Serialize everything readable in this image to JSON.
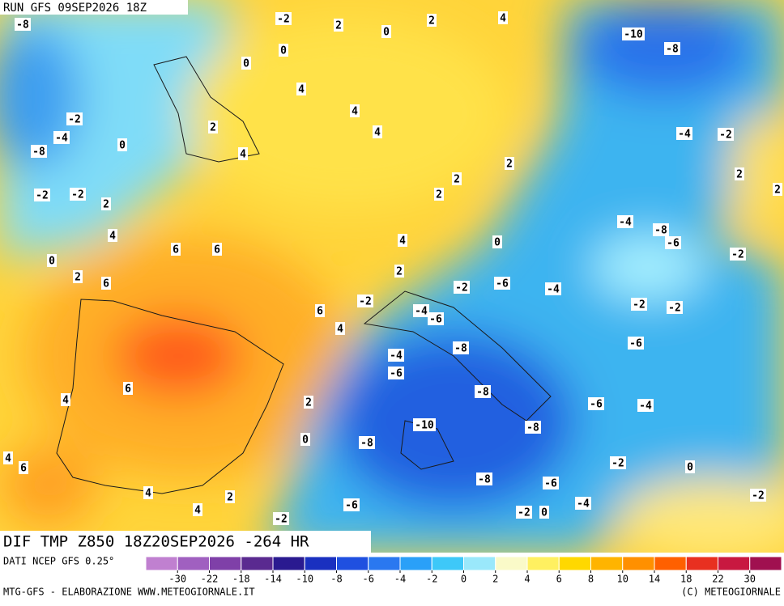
{
  "header": {
    "run": "RUN GFS 09SEP2026 18Z"
  },
  "map": {
    "title": "DIF TMP Z850 18Z20SEP2026 -264 HR",
    "contour_labels": [
      -8,
      -2,
      2,
      0,
      2,
      4,
      -10,
      -8,
      0,
      0,
      4,
      4,
      -2,
      4,
      2,
      -4,
      0,
      -8,
      -4,
      -2,
      4,
      2,
      2,
      2,
      -2,
      -2,
      2,
      2,
      2,
      -4,
      -8,
      -6,
      4,
      4,
      0,
      6,
      6,
      -2,
      0,
      2,
      2,
      6,
      -2,
      -6,
      -4,
      -2,
      -2,
      -2,
      6,
      -4,
      -6,
      4,
      -6,
      -8,
      -4,
      -6,
      6,
      4,
      -8,
      2,
      -6,
      -4,
      -10,
      -8,
      0,
      -8,
      4,
      6,
      -2,
      0,
      -8,
      -6,
      4,
      2,
      -2,
      -6,
      -4,
      4,
      -2,
      0,
      -2
    ]
  },
  "legend": {
    "source": "DATI NCEP GFS 0.25°",
    "colors": [
      "#c080d0",
      "#a060c0",
      "#7f40a8",
      "#5a2a90",
      "#2a1a90",
      "#1a30c0",
      "#1f50e0",
      "#2a78f0",
      "#2aa0f8",
      "#3ec8f8",
      "#9ae8fb",
      "#fafac8",
      "#fff060",
      "#ffd800",
      "#ffb400",
      "#ff9000",
      "#ff6000",
      "#e83020",
      "#c81840",
      "#a01050"
    ],
    "ticks": [
      -30,
      -22,
      -18,
      -14,
      -10,
      -8,
      -6,
      -4,
      -2,
      0,
      2,
      4,
      6,
      8,
      10,
      14,
      18,
      22,
      30
    ]
  },
  "footer": {
    "credit": "MTG-GFS - ELABORAZIONE WWW.METEOGIORNALE.IT",
    "copyright": "(C) METEOGIORNALE"
  }
}
